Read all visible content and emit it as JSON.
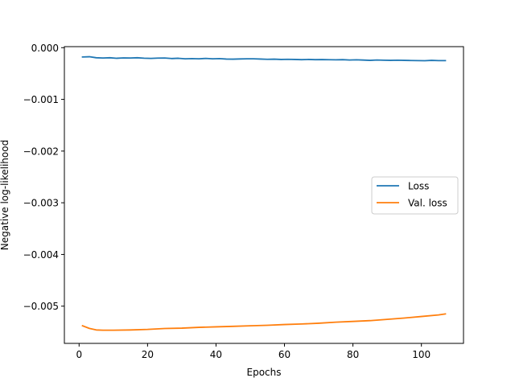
{
  "chart_data": {
    "type": "line",
    "title": "",
    "xlabel": "Epochs",
    "ylabel": "Negative log-likelihood",
    "xlim": [
      -4.3,
      112.3
    ],
    "ylim": [
      -0.00572,
      2e-05
    ],
    "xticks": [
      0,
      20,
      40,
      60,
      80,
      100
    ],
    "xtick_labels": [
      "0",
      "20",
      "40",
      "60",
      "80",
      "100"
    ],
    "yticks": [
      0.0,
      -0.001,
      -0.002,
      -0.003,
      -0.004,
      -0.005
    ],
    "ytick_labels": [
      "0.000",
      "−0.001",
      "−0.002",
      "−0.003",
      "−0.004",
      "−0.005"
    ],
    "grid": false,
    "legend_position": "center-right",
    "series": [
      {
        "name": "Loss",
        "color": "#1f77b4",
        "points": [
          [
            1,
            -0.00018
          ],
          [
            3,
            -0.000175
          ],
          [
            5,
            -0.000195
          ],
          [
            7,
            -0.0002
          ],
          [
            9,
            -0.000195
          ],
          [
            11,
            -0.000205
          ],
          [
            13,
            -0.000198
          ],
          [
            15,
            -0.0002
          ],
          [
            17,
            -0.000195
          ],
          [
            19,
            -0.000203
          ],
          [
            21,
            -0.000208
          ],
          [
            23,
            -0.000202
          ],
          [
            25,
            -0.0002
          ],
          [
            27,
            -0.00021
          ],
          [
            29,
            -0.000205
          ],
          [
            31,
            -0.000215
          ],
          [
            33,
            -0.000212
          ],
          [
            35,
            -0.000215
          ],
          [
            37,
            -0.000208
          ],
          [
            39,
            -0.000215
          ],
          [
            41,
            -0.000212
          ],
          [
            43,
            -0.00022
          ],
          [
            45,
            -0.000222
          ],
          [
            47,
            -0.000218
          ],
          [
            49,
            -0.000215
          ],
          [
            51,
            -0.000215
          ],
          [
            53,
            -0.00022
          ],
          [
            55,
            -0.000225
          ],
          [
            57,
            -0.000222
          ],
          [
            59,
            -0.000228
          ],
          [
            61,
            -0.000225
          ],
          [
            63,
            -0.000228
          ],
          [
            65,
            -0.000232
          ],
          [
            67,
            -0.000228
          ],
          [
            69,
            -0.000232
          ],
          [
            71,
            -0.00023
          ],
          [
            73,
            -0.000233
          ],
          [
            75,
            -0.000235
          ],
          [
            77,
            -0.000232
          ],
          [
            79,
            -0.000238
          ],
          [
            81,
            -0.000235
          ],
          [
            83,
            -0.00024
          ],
          [
            85,
            -0.000245
          ],
          [
            87,
            -0.000238
          ],
          [
            89,
            -0.000242
          ],
          [
            91,
            -0.000245
          ],
          [
            93,
            -0.000242
          ],
          [
            95,
            -0.000245
          ],
          [
            97,
            -0.000248
          ],
          [
            99,
            -0.00025
          ],
          [
            101,
            -0.000252
          ],
          [
            103,
            -0.000245
          ],
          [
            105,
            -0.00025
          ],
          [
            107,
            -0.00025
          ]
        ]
      },
      {
        "name": "Val. loss",
        "color": "#ff7f0e",
        "points": [
          [
            1,
            -0.00538
          ],
          [
            3,
            -0.00543
          ],
          [
            5,
            -0.00546
          ],
          [
            7,
            -0.005465
          ],
          [
            10,
            -0.005465
          ],
          [
            15,
            -0.00546
          ],
          [
            20,
            -0.00545
          ],
          [
            25,
            -0.005432
          ],
          [
            30,
            -0.005425
          ],
          [
            35,
            -0.00541
          ],
          [
            40,
            -0.0054
          ],
          [
            45,
            -0.00539
          ],
          [
            50,
            -0.00538
          ],
          [
            55,
            -0.00537
          ],
          [
            60,
            -0.005355
          ],
          [
            65,
            -0.005345
          ],
          [
            70,
            -0.00533
          ],
          [
            75,
            -0.00531
          ],
          [
            80,
            -0.005295
          ],
          [
            85,
            -0.00528
          ],
          [
            90,
            -0.005255
          ],
          [
            95,
            -0.00523
          ],
          [
            100,
            -0.0052
          ],
          [
            105,
            -0.00517
          ],
          [
            107,
            -0.00515
          ]
        ]
      }
    ]
  }
}
